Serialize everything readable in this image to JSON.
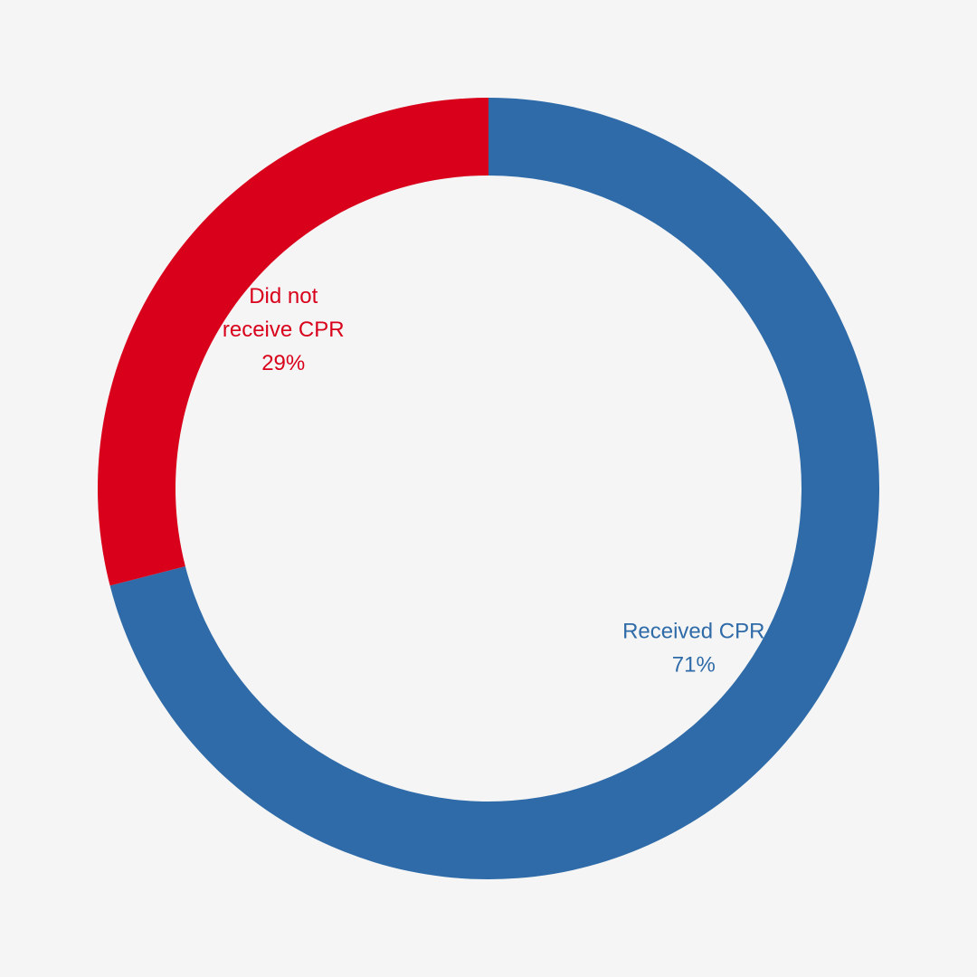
{
  "chart_data": {
    "type": "pie",
    "variant": "donut",
    "slices": [
      {
        "label_lines": [
          "Received CPR"
        ],
        "name": "Received CPR",
        "value": 71,
        "value_label": "71%",
        "color": "#2e6ba8"
      },
      {
        "label_lines": [
          "Did not",
          "receive CPR"
        ],
        "name": "Did not receive CPR",
        "value": 29,
        "value_label": "29%",
        "color": "#d9001b"
      }
    ],
    "legend": "none",
    "start_position": "top",
    "direction": "clockwise"
  },
  "colors": {
    "background": "#f5f5f5"
  }
}
